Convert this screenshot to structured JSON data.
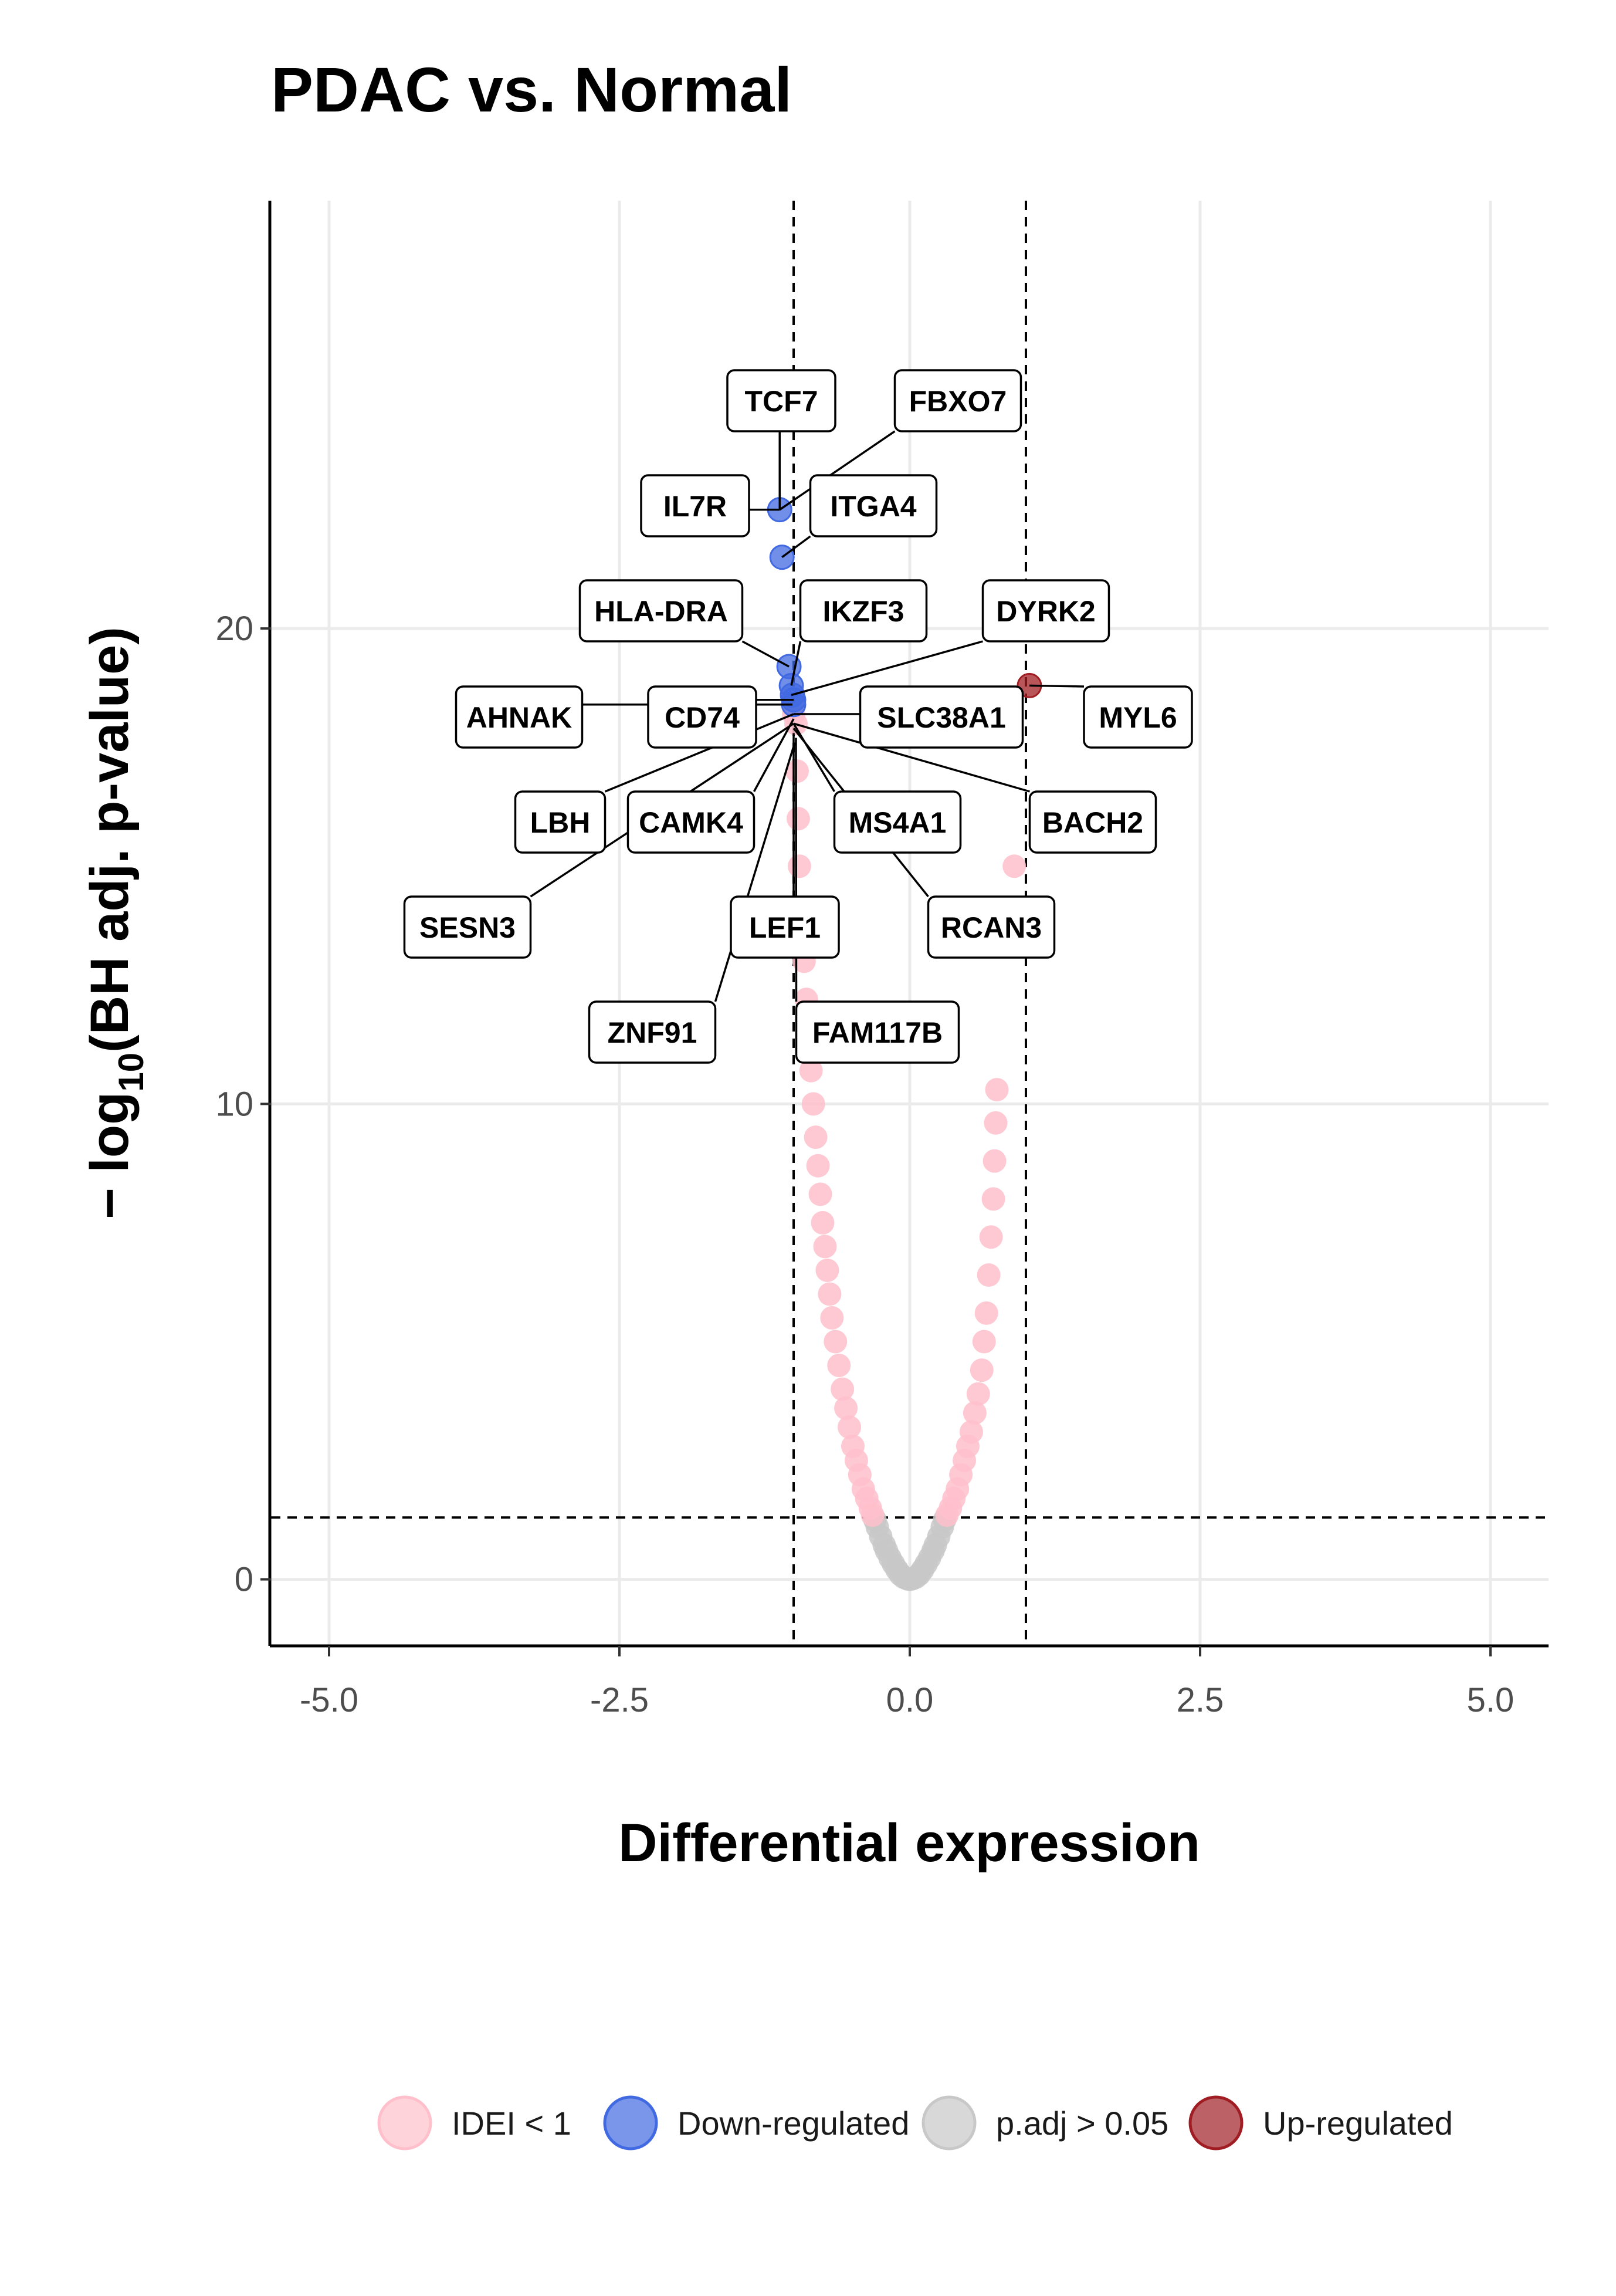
{
  "colors": {
    "ns_fc": "#ffc0cb",
    "down": "#4169e1",
    "ns_p": "#c8c8c8",
    "up": "#a01e23"
  },
  "chart_data": {
    "type": "scatter",
    "title": "PDAC vs. Normal",
    "xlabel": "Differential expression",
    "ylabel_prefix": "− log",
    "ylabel_sub": "10",
    "ylabel_main": "(BH adj. p-value)",
    "xlim": [
      -5.5,
      5.5
    ],
    "ylim": [
      -1.4,
      29
    ],
    "x_ticks": [
      "-5.0",
      "-2.5",
      "0.0",
      "2.5",
      "5.0"
    ],
    "y_ticks": [
      "0",
      "10",
      "20"
    ],
    "grid": true,
    "fc_threshold": 1,
    "p_threshold_line": 1.3,
    "legend": {
      "position": "bottom",
      "items": [
        {
          "label": "IDEI < 1",
          "category": "ns_fc"
        },
        {
          "label": "Down-regulated",
          "category": "down"
        },
        {
          "label": "p.adj > 0.05",
          "category": "ns_p"
        },
        {
          "label": "Up-regulated",
          "category": "up"
        }
      ]
    },
    "series": [
      {
        "category": "ns_p",
        "x": [
          -0.3,
          -0.28,
          -0.25,
          -0.22,
          -0.2,
          -0.17,
          -0.14,
          -0.11,
          -0.08,
          -0.05,
          -0.02,
          0.0,
          0.02,
          0.05,
          0.08,
          0.11,
          0.14,
          0.17,
          0.2,
          0.22,
          0.25,
          0.28,
          0.3
        ],
        "y": [
          1.25,
          1.1,
          0.9,
          0.72,
          0.6,
          0.45,
          0.32,
          0.2,
          0.1,
          0.04,
          0.01,
          0.0,
          0.01,
          0.04,
          0.1,
          0.2,
          0.32,
          0.45,
          0.6,
          0.72,
          0.9,
          1.1,
          1.25
        ]
      },
      {
        "category": "ns_fc",
        "x": [
          -0.98,
          -0.97,
          -0.96,
          -0.95,
          -0.93,
          -0.91,
          -0.89,
          -0.87,
          -0.85,
          -0.83,
          -0.81,
          -0.79,
          -0.77,
          -0.75,
          -0.73,
          -0.71,
          -0.69,
          -0.67,
          -0.64,
          -0.61,
          -0.58,
          -0.55,
          -0.52,
          -0.49,
          -0.46,
          -0.43,
          -0.4,
          -0.37,
          -0.34,
          -0.32,
          0.32,
          0.35,
          0.38,
          0.41,
          0.44,
          0.47,
          0.5,
          0.53,
          0.56,
          0.59,
          0.62,
          0.64,
          0.66,
          0.68,
          0.7,
          0.72,
          0.73,
          0.74,
          0.75,
          0.9,
          -1.0
        ],
        "y": [
          18.0,
          17.0,
          16.0,
          15.0,
          14.0,
          13.0,
          12.2,
          11.5,
          10.7,
          10.0,
          9.3,
          8.7,
          8.1,
          7.5,
          7.0,
          6.5,
          6.0,
          5.5,
          5.0,
          4.5,
          4.0,
          3.6,
          3.2,
          2.8,
          2.5,
          2.2,
          1.9,
          1.7,
          1.5,
          1.35,
          1.35,
          1.5,
          1.7,
          1.9,
          2.2,
          2.5,
          2.8,
          3.1,
          3.5,
          3.9,
          4.4,
          5.0,
          5.6,
          6.4,
          7.2,
          8.0,
          8.8,
          9.6,
          10.3,
          15.0,
          18.2
        ]
      },
      {
        "category": "down",
        "x": [
          -1.12,
          -1.1,
          -1.04,
          -1.02,
          -1.01,
          -1.0,
          -1.0
        ],
        "y": [
          22.5,
          21.5,
          19.2,
          18.8,
          18.6,
          18.5,
          18.4
        ]
      },
      {
        "category": "up",
        "x": [
          1.03
        ],
        "y": [
          18.8
        ]
      }
    ],
    "annotations": [
      {
        "label": "TCF7",
        "x": -1.12,
        "y": 22.5
      },
      {
        "label": "FBXO7",
        "x": -1.12,
        "y": 22.5
      },
      {
        "label": "IL7R",
        "x": -1.12,
        "y": 22.5
      },
      {
        "label": "ITGA4",
        "x": -1.1,
        "y": 21.5
      },
      {
        "label": "HLA-DRA",
        "x": -1.04,
        "y": 19.2
      },
      {
        "label": "IKZF3",
        "x": -1.02,
        "y": 18.8
      },
      {
        "label": "DYRK2",
        "x": -1.02,
        "y": 18.6
      },
      {
        "label": "AHNAK",
        "x": -1.01,
        "y": 18.4
      },
      {
        "label": "CD74",
        "x": -1.0,
        "y": 18.5
      },
      {
        "label": "SLC38A1",
        "x": -1.0,
        "y": 18.2
      },
      {
        "label": "MYL6",
        "x": 1.03,
        "y": 18.8
      },
      {
        "label": "LBH",
        "x": -1.0,
        "y": 18.2
      },
      {
        "label": "CAMK4",
        "x": -1.0,
        "y": 18.1
      },
      {
        "label": "MS4A1",
        "x": -1.0,
        "y": 18.0
      },
      {
        "label": "BACH2",
        "x": -1.0,
        "y": 18.0
      },
      {
        "label": "SESN3",
        "x": -1.0,
        "y": 18.0
      },
      {
        "label": "LEF1",
        "x": -1.0,
        "y": 17.8
      },
      {
        "label": "RCAN3",
        "x": -1.0,
        "y": 17.9
      },
      {
        "label": "ZNF91",
        "x": -0.99,
        "y": 17.6
      },
      {
        "label": "FAM117B",
        "x": -0.98,
        "y": 17.7
      }
    ]
  }
}
